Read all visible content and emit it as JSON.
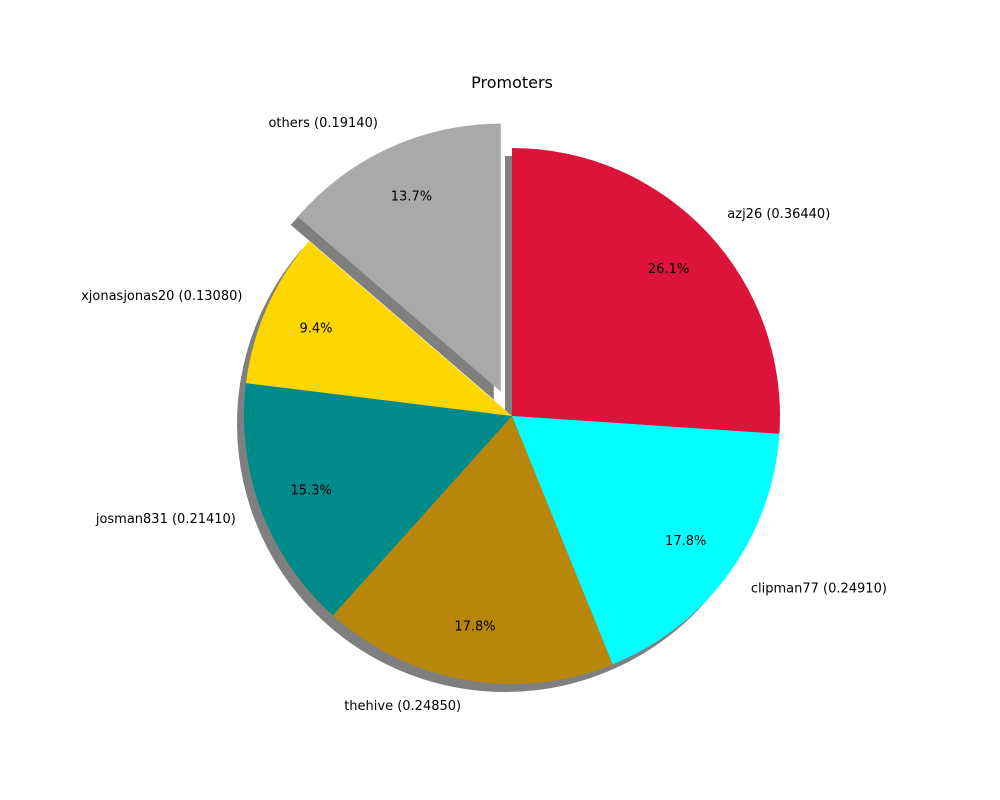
{
  "chart_data": {
    "type": "pie",
    "title": "Promoters",
    "start_angle_deg": 90,
    "direction": "clockwise",
    "shadow": true,
    "slices": [
      {
        "label": "azj26 (0.36440)",
        "value": 0.3644,
        "percent_label": "26.1%",
        "color": "#DC143C",
        "exploded": false
      },
      {
        "label": "clipman77 (0.24910)",
        "value": 0.2491,
        "percent_label": "17.8%",
        "color": "#00FFFF",
        "exploded": false
      },
      {
        "label": "thehive (0.24850)",
        "value": 0.2485,
        "percent_label": "17.8%",
        "color": "#B8860B",
        "exploded": false
      },
      {
        "label": "josman831 (0.21410)",
        "value": 0.2141,
        "percent_label": "15.3%",
        "color": "#008B8B",
        "exploded": false
      },
      {
        "label": "xjonasjonas20 (0.13080)",
        "value": 0.1308,
        "percent_label": "9.4%",
        "color": "#FFD700",
        "exploded": false
      },
      {
        "label": "others (0.19140)",
        "value": 0.1914,
        "percent_label": "13.7%",
        "color": "#A9A9A9",
        "exploded": true
      }
    ]
  }
}
